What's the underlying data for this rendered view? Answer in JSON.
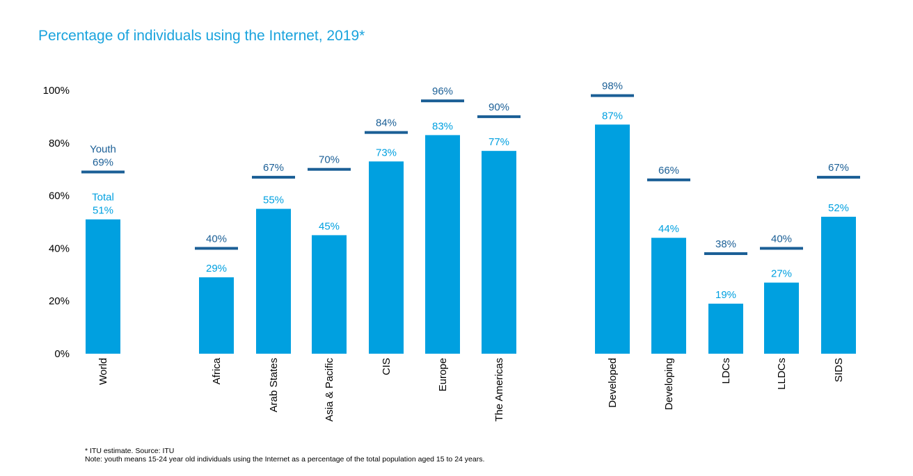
{
  "chart_data": {
    "type": "bar",
    "title": "Percentage of individuals using the Internet, 2019*",
    "categories": [
      "World",
      "Africa",
      "Arab States",
      "Asia & Pacific",
      "CIS",
      "Europe",
      "The Americas",
      "Developed",
      "Developing",
      "LDCs",
      "LLDCs",
      "SIDS"
    ],
    "series": [
      {
        "name": "Total",
        "values": [
          51,
          29,
          55,
          45,
          73,
          83,
          77,
          87,
          44,
          19,
          27,
          52
        ]
      },
      {
        "name": "Youth",
        "values": [
          69,
          40,
          67,
          70,
          84,
          96,
          90,
          98,
          66,
          38,
          40,
          67
        ]
      }
    ],
    "y_ticks": [
      "0%",
      "20%",
      "40%",
      "60%",
      "80%",
      "100%"
    ],
    "ylim": [
      0,
      100
    ],
    "grid": false,
    "colors": {
      "total": "#00a0e0",
      "youth": "#1b5f96",
      "title": "#1aa3dd"
    }
  },
  "footnotes": {
    "source": "* ITU estimate. Source: ITU",
    "note": "Note: youth means 15-24 year old individuals using the Internet as a percentage of the total population aged 15 to 24 years."
  }
}
